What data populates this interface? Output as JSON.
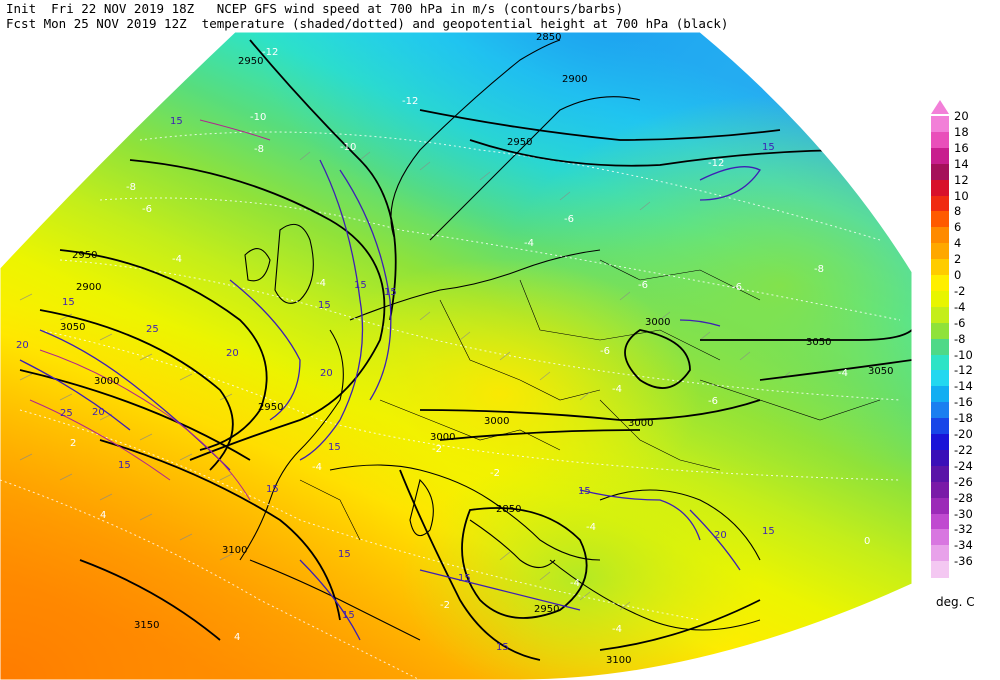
{
  "header": {
    "line1": "Init  Fri 22 NOV 2019 18Z   NCEP GFS wind speed at 700 hPa in m/s (contours/barbs)",
    "line2": "Fcst Mon 25 NOV 2019 12Z  temperature (shaded/dotted) and geopotential height at 700 hPa (black)"
  },
  "colorbar": {
    "units": "deg. C",
    "levels": [
      {
        "value": "20",
        "color": "#f27fd8"
      },
      {
        "value": "18",
        "color": "#e94fba"
      },
      {
        "value": "16",
        "color": "#c81e8e"
      },
      {
        "value": "14",
        "color": "#a5115a"
      },
      {
        "value": "12",
        "color": "#d8102a"
      },
      {
        "value": "10",
        "color": "#f02b10"
      },
      {
        "value": "8",
        "color": "#ff5a00"
      },
      {
        "value": "6",
        "color": "#ff8a00"
      },
      {
        "value": "4",
        "color": "#ffa800"
      },
      {
        "value": "2",
        "color": "#ffcc00"
      },
      {
        "value": "0",
        "color": "#ffef00"
      },
      {
        "value": "-2",
        "color": "#e8f500"
      },
      {
        "value": "-4",
        "color": "#c4ee1a"
      },
      {
        "value": "-6",
        "color": "#8fe23a"
      },
      {
        "value": "-8",
        "color": "#4ed987"
      },
      {
        "value": "-10",
        "color": "#2ee3c6"
      },
      {
        "value": "-12",
        "color": "#22d8f0"
      },
      {
        "value": "-14",
        "color": "#12aef2"
      },
      {
        "value": "-16",
        "color": "#1a7ff0"
      },
      {
        "value": "-18",
        "color": "#1846e8"
      },
      {
        "value": "-20",
        "color": "#1a14d8"
      },
      {
        "value": "-22",
        "color": "#3a0fb8"
      },
      {
        "value": "-24",
        "color": "#5a14a8"
      },
      {
        "value": "-26",
        "color": "#7a1aa8"
      },
      {
        "value": "-28",
        "color": "#9c2ab8"
      },
      {
        "value": "-30",
        "color": "#c04ad0"
      },
      {
        "value": "-32",
        "color": "#d877e0"
      },
      {
        "value": "-34",
        "color": "#e8a2ea"
      },
      {
        "value": "-36",
        "color": "#f4c8f2"
      }
    ]
  },
  "height_labels": [
    "2950",
    "2900",
    "2950",
    "2850",
    "3050",
    "3000",
    "3050",
    "3050",
    "3000",
    "3100",
    "3150",
    "3000",
    "2950",
    "2950",
    "3000",
    "3000",
    "2900",
    "2850",
    "2950",
    "3100"
  ],
  "wind_labels": [
    "15",
    "15",
    "15",
    "15",
    "15",
    "20",
    "20",
    "25",
    "25",
    "15",
    "15",
    "15",
    "15",
    "20",
    "15",
    "15",
    "15",
    "20",
    "15",
    "20",
    "15",
    "15"
  ],
  "temp_labels": [
    "-12",
    "-12",
    "-10",
    "-10",
    "-8",
    "-8",
    "-6",
    "-6",
    "-4",
    "-4",
    "-4",
    "-2",
    "-2",
    "-4",
    "-6",
    "-6",
    "-8",
    "-6",
    "-6",
    "-4",
    "-4",
    "-2",
    "-4",
    "-4",
    "2",
    "4",
    "4",
    "0",
    "-4",
    "-12"
  ]
}
